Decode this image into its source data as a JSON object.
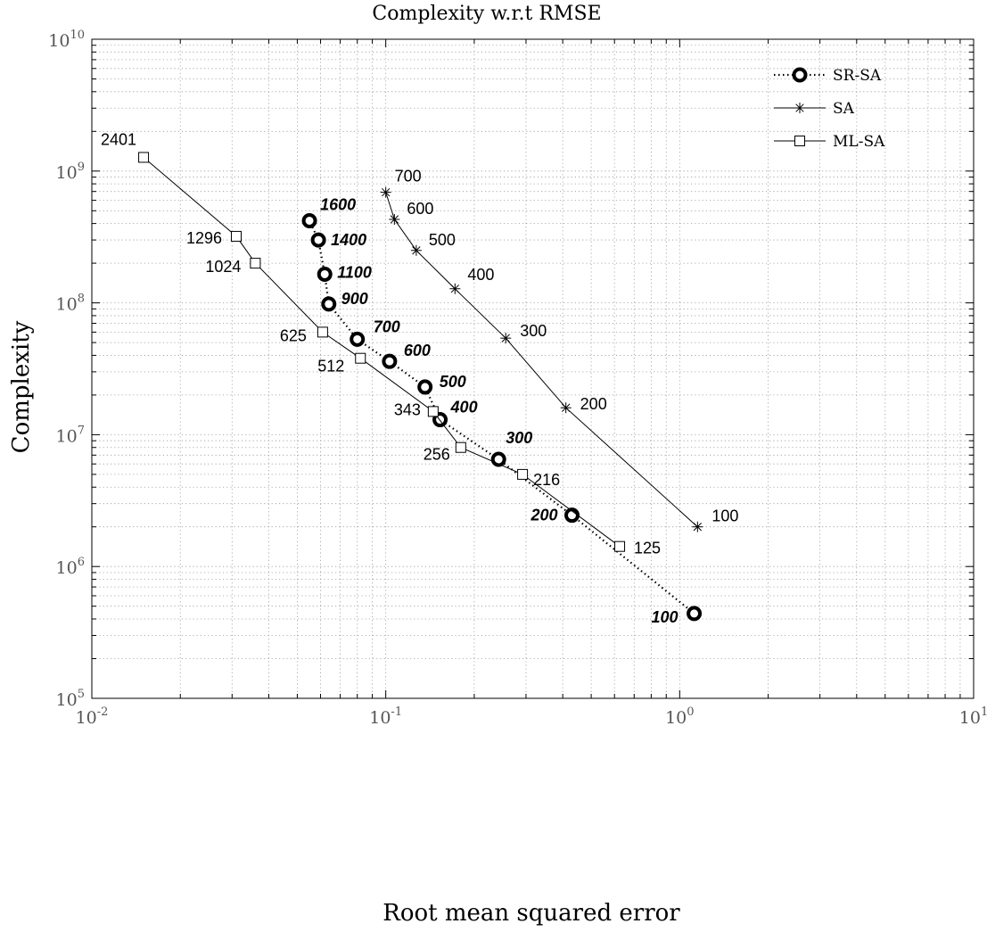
{
  "chart_data": {
    "type": "line",
    "title": "Complexity w.r.t RMSE",
    "xlabel": "Root mean squared error",
    "ylabel": "Complexity",
    "xscale": "log",
    "yscale": "log",
    "xlim": [
      0.01,
      10
    ],
    "ylim": [
      100000,
      10000000000
    ],
    "x_ticks": [
      {
        "base": "10",
        "exp": "-2"
      },
      {
        "base": "10",
        "exp": "-1"
      },
      {
        "base": "10",
        "exp": "0"
      },
      {
        "base": "10",
        "exp": "1"
      }
    ],
    "y_ticks": [
      {
        "base": "10",
        "exp": "5"
      },
      {
        "base": "10",
        "exp": "6"
      },
      {
        "base": "10",
        "exp": "7"
      },
      {
        "base": "10",
        "exp": "8"
      },
      {
        "base": "10",
        "exp": "9"
      },
      {
        "base": "10",
        "exp": "10"
      }
    ],
    "grid": true,
    "minor_grid": true,
    "legend_position": "top-right",
    "series": [
      {
        "name": "SR-SA",
        "line_style": "dotted",
        "marker": "circle",
        "label_style": "bold-italic",
        "points": [
          {
            "label": "100",
            "x": 1.12,
            "y": 440000
          },
          {
            "label": "200",
            "x": 0.43,
            "y": 2450000
          },
          {
            "label": "300",
            "x": 0.242,
            "y": 6500000
          },
          {
            "label": "400",
            "x": 0.153,
            "y": 13000000
          },
          {
            "label": "500",
            "x": 0.136,
            "y": 23000000
          },
          {
            "label": "600",
            "x": 0.103,
            "y": 36000000
          },
          {
            "label": "700",
            "x": 0.08,
            "y": 53000000
          },
          {
            "label": "900",
            "x": 0.064,
            "y": 98000000
          },
          {
            "label": "1100",
            "x": 0.062,
            "y": 165000000
          },
          {
            "label": "1400",
            "x": 0.059,
            "y": 300000000
          },
          {
            "label": "1600",
            "x": 0.055,
            "y": 420000000
          }
        ]
      },
      {
        "name": "SA",
        "line_style": "solid",
        "marker": "asterisk",
        "label_style": "normal",
        "points": [
          {
            "label": "100",
            "x": 1.15,
            "y": 2000000
          },
          {
            "label": "200",
            "x": 0.41,
            "y": 16000000
          },
          {
            "label": "300",
            "x": 0.256,
            "y": 54000000
          },
          {
            "label": "400",
            "x": 0.172,
            "y": 128000000
          },
          {
            "label": "500",
            "x": 0.127,
            "y": 250000000
          },
          {
            "label": "600",
            "x": 0.107,
            "y": 430000000
          },
          {
            "label": "700",
            "x": 0.1,
            "y": 690000000
          }
        ]
      },
      {
        "name": "ML-SA",
        "line_style": "solid",
        "marker": "square",
        "label_style": "normal",
        "points": [
          {
            "label": "125",
            "x": 0.625,
            "y": 1420000
          },
          {
            "label": "216",
            "x": 0.292,
            "y": 5000000
          },
          {
            "label": "256",
            "x": 0.18,
            "y": 8000000
          },
          {
            "label": "343",
            "x": 0.145,
            "y": 15000000
          },
          {
            "label": "512",
            "x": 0.082,
            "y": 38000000
          },
          {
            "label": "625",
            "x": 0.061,
            "y": 60000000
          },
          {
            "label": "1024",
            "x": 0.036,
            "y": 200000000
          },
          {
            "label": "1296",
            "x": 0.031,
            "y": 320000000
          },
          {
            "label": "2401",
            "x": 0.015,
            "y": 1270000000
          }
        ]
      }
    ]
  }
}
